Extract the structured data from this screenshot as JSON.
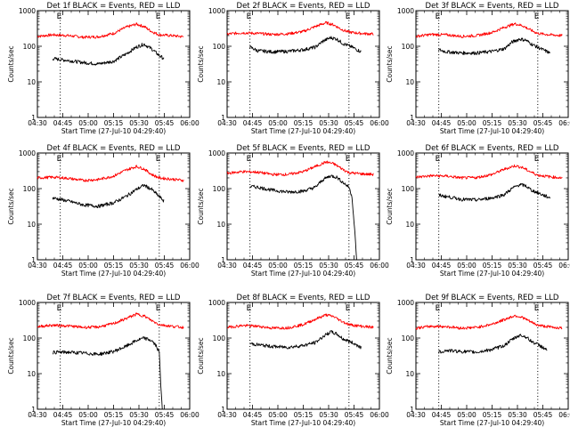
{
  "figure": {
    "start_time_label": "Start Time (27-Jul-10 04:29:40)"
  },
  "chart_data": {
    "type": "line",
    "yscale": "log",
    "ylim": [
      1,
      1000
    ],
    "xlim": [
      0,
      100
    ],
    "xticks": [
      "04:30",
      "04:45",
      "05:00",
      "05:15",
      "05:30",
      "05:45",
      "06:00"
    ],
    "yticks": [
      "1",
      "10",
      "100",
      "1000"
    ],
    "ylabel": "Counts/sec",
    "xlabel": "Start Time (27-Jul-10 04:29:40)",
    "markers": {
      "x": [
        15,
        80
      ],
      "label": "E"
    },
    "panels": [
      {
        "title": "Det 1f BLACK = Events, RED = LLD",
        "black": {
          "x": [
            10,
            20,
            30,
            40,
            50,
            58,
            65,
            70,
            75,
            80,
            83
          ],
          "y": [
            45,
            40,
            35,
            32,
            38,
            60,
            95,
            115,
            85,
            55,
            45
          ]
        },
        "red": {
          "x": [
            0,
            10,
            20,
            30,
            40,
            50,
            58,
            65,
            70,
            75,
            80,
            88,
            96
          ],
          "y": [
            190,
            210,
            200,
            180,
            185,
            230,
            340,
            420,
            360,
            260,
            210,
            200,
            185
          ]
        }
      },
      {
        "title": "Det 2f BLACK = Events, RED = LLD",
        "black": {
          "x": [
            15,
            20,
            30,
            40,
            50,
            58,
            63,
            68,
            72,
            76,
            82,
            88
          ],
          "y": [
            95,
            75,
            70,
            72,
            80,
            95,
            140,
            175,
            160,
            120,
            95,
            70
          ]
        },
        "red": {
          "x": [
            0,
            10,
            20,
            30,
            40,
            50,
            58,
            65,
            70,
            75,
            80,
            88,
            96
          ],
          "y": [
            220,
            240,
            230,
            215,
            225,
            260,
            360,
            460,
            400,
            300,
            250,
            230,
            220
          ]
        }
      },
      {
        "title": "Det 3f BLACK = Events, RED = LLD",
        "black": {
          "x": [
            15,
            20,
            30,
            40,
            50,
            58,
            63,
            68,
            72,
            76,
            82,
            88
          ],
          "y": [
            80,
            70,
            65,
            65,
            72,
            85,
            130,
            160,
            150,
            115,
            85,
            65
          ]
        },
        "red": {
          "x": [
            0,
            10,
            20,
            30,
            40,
            50,
            58,
            65,
            70,
            75,
            80,
            88,
            96
          ],
          "y": [
            190,
            215,
            210,
            190,
            200,
            245,
            340,
            430,
            380,
            290,
            230,
            210,
            200
          ]
        }
      },
      {
        "title": "Det 4f BLACK = Events, RED = LLD",
        "black": {
          "x": [
            10,
            20,
            30,
            40,
            50,
            58,
            65,
            70,
            75,
            80,
            83
          ],
          "y": [
            55,
            45,
            35,
            32,
            40,
            60,
            95,
            125,
            95,
            60,
            45
          ]
        },
        "red": {
          "x": [
            0,
            10,
            20,
            30,
            40,
            50,
            58,
            65,
            70,
            75,
            80,
            88,
            96
          ],
          "y": [
            200,
            210,
            195,
            170,
            180,
            225,
            330,
            420,
            360,
            250,
            200,
            185,
            170
          ]
        }
      },
      {
        "title": "Det 5f BLACK = Events, RED = LLD",
        "black": {
          "x": [
            15,
            20,
            30,
            40,
            50,
            58,
            63,
            68,
            72,
            76,
            80,
            82,
            84,
            85
          ],
          "y": [
            115,
            110,
            90,
            80,
            85,
            110,
            180,
            230,
            210,
            150,
            110,
            60,
            5,
            1
          ]
        },
        "red": {
          "x": [
            0,
            10,
            20,
            30,
            40,
            50,
            58,
            65,
            70,
            75,
            80,
            88,
            96
          ],
          "y": [
            270,
            300,
            290,
            250,
            250,
            300,
            420,
            560,
            500,
            370,
            280,
            260,
            250
          ]
        }
      },
      {
        "title": "Det 6f BLACK = Events, RED = LLD",
        "black": {
          "x": [
            15,
            20,
            30,
            40,
            50,
            58,
            63,
            68,
            72,
            76,
            82,
            88
          ],
          "y": [
            65,
            60,
            50,
            48,
            55,
            68,
            100,
            130,
            120,
            90,
            70,
            55
          ]
        },
        "red": {
          "x": [
            0,
            10,
            20,
            30,
            40,
            50,
            58,
            65,
            70,
            75,
            80,
            88,
            96
          ],
          "y": [
            210,
            230,
            225,
            200,
            205,
            250,
            350,
            440,
            390,
            300,
            240,
            215,
            200
          ]
        }
      },
      {
        "title": "Det 7f BLACK = Events, RED = LLD",
        "black": {
          "x": [
            10,
            20,
            30,
            40,
            50,
            58,
            65,
            70,
            75,
            78,
            80,
            81,
            82
          ],
          "y": [
            40,
            40,
            38,
            35,
            42,
            58,
            85,
            100,
            85,
            60,
            40,
            5,
            1
          ]
        },
        "red": {
          "x": [
            0,
            10,
            20,
            30,
            40,
            50,
            58,
            65,
            70,
            75,
            80,
            88,
            96
          ],
          "y": [
            210,
            230,
            220,
            200,
            205,
            255,
            350,
            470,
            420,
            310,
            240,
            215,
            200
          ]
        }
      },
      {
        "title": "Det 8f BLACK = Events, RED = LLD",
        "black": {
          "x": [
            15,
            20,
            30,
            40,
            50,
            58,
            63,
            68,
            72,
            76,
            82,
            88
          ],
          "y": [
            70,
            65,
            58,
            55,
            62,
            75,
            110,
            150,
            130,
            95,
            75,
            55
          ]
        },
        "red": {
          "x": [
            0,
            10,
            20,
            30,
            40,
            50,
            58,
            65,
            70,
            75,
            80,
            88,
            96
          ],
          "y": [
            200,
            225,
            215,
            190,
            195,
            240,
            340,
            450,
            400,
            300,
            240,
            215,
            200
          ]
        }
      },
      {
        "title": "Det 9f BLACK = Events, RED = LLD",
        "black": {
          "x": [
            15,
            20,
            30,
            40,
            50,
            58,
            63,
            68,
            72,
            76,
            82,
            86
          ],
          "y": [
            40,
            45,
            42,
            40,
            48,
            62,
            90,
            120,
            110,
            80,
            60,
            45
          ]
        },
        "red": {
          "x": [
            0,
            10,
            20,
            30,
            40,
            50,
            58,
            65,
            70,
            75,
            80,
            88,
            96
          ],
          "y": [
            190,
            215,
            210,
            190,
            200,
            245,
            330,
            430,
            380,
            290,
            230,
            205,
            190
          ]
        }
      }
    ]
  }
}
